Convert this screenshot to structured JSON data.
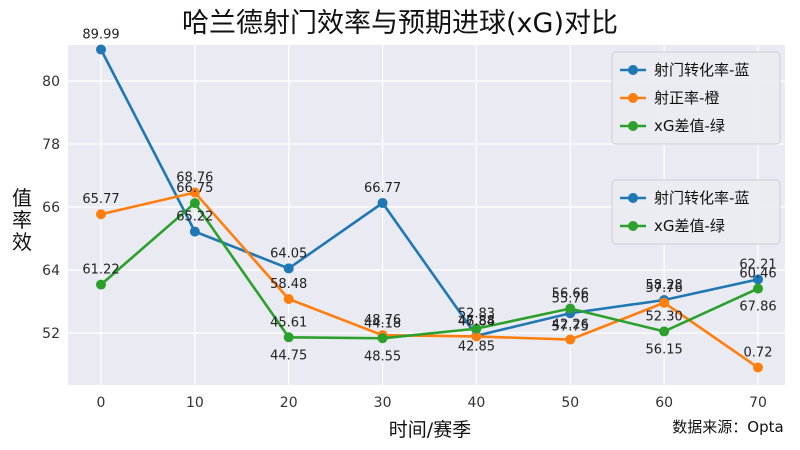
{
  "chart_data": {
    "type": "line",
    "title": "哈兰德射门效率与预期进球(xG)对比",
    "xlabel": "时间/赛季",
    "ylabel": "值率效",
    "source": "数据来源：Opta",
    "x": [
      0,
      10,
      20,
      30,
      40,
      50,
      60,
      70
    ],
    "y_ticks": [
      "80",
      "78",
      "66",
      "64",
      "52"
    ],
    "xlim": [
      -4,
      73
    ],
    "grid": true,
    "series": [
      {
        "name": "射门转化率-蓝",
        "color": "#1f77b4",
        "values": [
          89.99,
          65.22,
          64.05,
          66.77,
          47.88,
          55.76,
          58.28,
          62.21
        ],
        "labels": [
          "89.99",
          "65.22",
          "64.05",
          "66.77",
          "47.88",
          "55.76",
          "58.28",
          "62.21"
        ]
      },
      {
        "name": "射正率-橙",
        "color": "#ff7f0e",
        "values": [
          65.77,
          68.76,
          58.48,
          48.76,
          46.84,
          42.26,
          57.76,
          0.72
        ],
        "labels": [
          "65.77",
          "68.76",
          "58.48",
          "48.76",
          "46.84",
          "42.26",
          "57.76",
          "0.72"
        ]
      },
      {
        "name": "xG差值-绿",
        "color": "#2ca02c",
        "values": [
          61.22,
          66.75,
          45.61,
          44.18,
          52.83,
          56.66,
          52.3,
          60.46
        ],
        "labels": [
          "61.22",
          "66.75",
          "45.61",
          "44.18",
          "52.83",
          "56.66",
          "52.30",
          "60.46"
        ],
        "labels_below": [
          "",
          "",
          "44.75",
          "48.55",
          "42.85",
          "57.75",
          "56.15",
          "67.86"
        ]
      }
    ],
    "legends": [
      {
        "placement": "top-right",
        "entries": [
          "射门转化率-蓝",
          "射正率-橙",
          "xG差值-绿"
        ],
        "colors": [
          "#1f77b4",
          "#ff7f0e",
          "#2ca02c"
        ]
      },
      {
        "placement": "right",
        "entries": [
          "射门转化率-蓝",
          "xG差值-绿"
        ],
        "colors": [
          "#1f77b4",
          "#2ca02c"
        ]
      }
    ]
  }
}
